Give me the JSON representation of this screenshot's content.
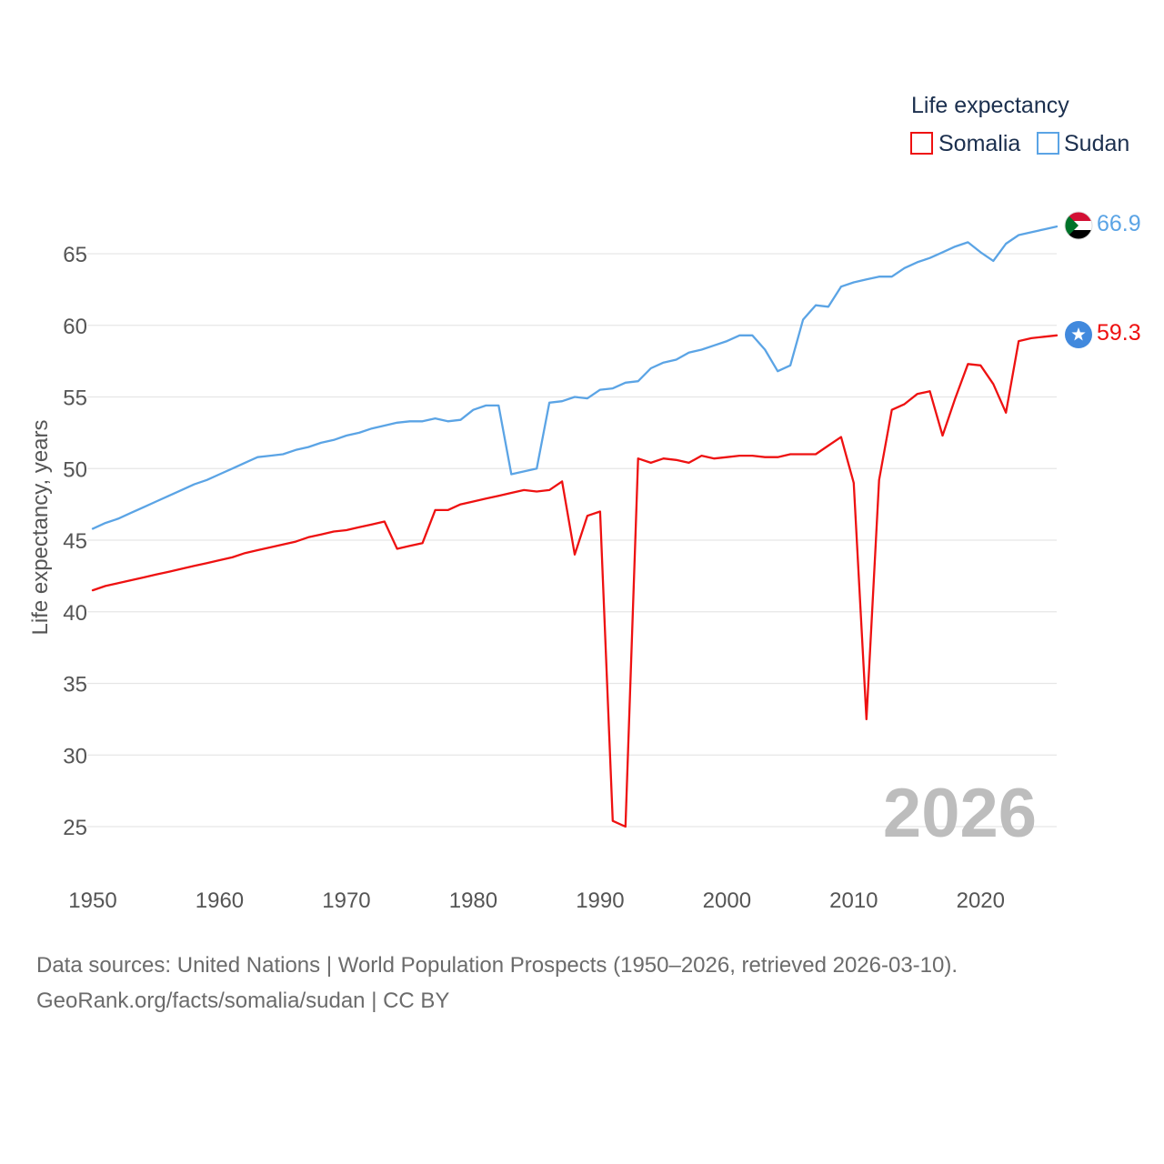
{
  "chart_data": {
    "type": "line",
    "title": "",
    "xlabel": "",
    "ylabel": "Life expectancy, years",
    "legend_title": "Life expectancy",
    "legend_position": "top-right",
    "xlim": [
      1950,
      2026
    ],
    "ylim": [
      22,
      69
    ],
    "x_ticks": [
      1950,
      1960,
      1970,
      1980,
      1990,
      2000,
      2010,
      2020
    ],
    "y_ticks": [
      25,
      30,
      35,
      40,
      45,
      50,
      55,
      60,
      65
    ],
    "grid": true,
    "year_label": "2026",
    "x": [
      1950,
      1951,
      1952,
      1953,
      1954,
      1955,
      1956,
      1957,
      1958,
      1959,
      1960,
      1961,
      1962,
      1963,
      1964,
      1965,
      1966,
      1967,
      1968,
      1969,
      1970,
      1971,
      1972,
      1973,
      1974,
      1975,
      1976,
      1977,
      1978,
      1979,
      1980,
      1981,
      1982,
      1983,
      1984,
      1985,
      1986,
      1987,
      1988,
      1989,
      1990,
      1991,
      1992,
      1993,
      1994,
      1995,
      1996,
      1997,
      1998,
      1999,
      2000,
      2001,
      2002,
      2003,
      2004,
      2005,
      2006,
      2007,
      2008,
      2009,
      2010,
      2011,
      2012,
      2013,
      2014,
      2015,
      2016,
      2017,
      2018,
      2019,
      2020,
      2021,
      2022,
      2023,
      2024,
      2025,
      2026
    ],
    "series": [
      {
        "name": "Somalia",
        "color": "#ee1111",
        "end_value_label": "59.3",
        "marker_icon": "somalia-flag-icon",
        "values": [
          41.5,
          41.8,
          42.0,
          42.2,
          42.4,
          42.6,
          42.8,
          43.0,
          43.2,
          43.4,
          43.6,
          43.8,
          44.1,
          44.3,
          44.5,
          44.7,
          44.9,
          45.2,
          45.4,
          45.6,
          45.7,
          45.9,
          46.1,
          46.3,
          44.4,
          44.6,
          44.8,
          47.1,
          47.1,
          47.5,
          47.7,
          47.9,
          48.1,
          48.3,
          48.5,
          48.4,
          48.5,
          49.1,
          44.0,
          46.7,
          47.0,
          25.4,
          25.0,
          50.7,
          50.4,
          50.7,
          50.6,
          50.4,
          50.9,
          50.7,
          50.8,
          50.9,
          50.9,
          50.8,
          50.8,
          51.0,
          51.0,
          51.0,
          51.6,
          52.2,
          49.0,
          32.5,
          49.2,
          54.1,
          54.5,
          55.2,
          55.4,
          52.3,
          54.9,
          57.3,
          57.2,
          55.9,
          53.9,
          58.9,
          59.1,
          59.2,
          59.3
        ]
      },
      {
        "name": "Sudan",
        "color": "#5ba4e5",
        "end_value_label": "66.9",
        "marker_icon": "sudan-flag-icon",
        "values": [
          45.8,
          46.2,
          46.5,
          46.9,
          47.3,
          47.7,
          48.1,
          48.5,
          48.9,
          49.2,
          49.6,
          50.0,
          50.4,
          50.8,
          50.9,
          51.0,
          51.3,
          51.5,
          51.8,
          52.0,
          52.3,
          52.5,
          52.8,
          53.0,
          53.2,
          53.3,
          53.3,
          53.5,
          53.3,
          53.4,
          54.1,
          54.4,
          54.4,
          49.6,
          49.8,
          50.0,
          54.6,
          54.7,
          55.0,
          54.9,
          55.5,
          55.6,
          56.0,
          56.1,
          57.0,
          57.4,
          57.6,
          58.1,
          58.3,
          58.6,
          58.9,
          59.3,
          59.3,
          58.3,
          56.8,
          57.2,
          60.4,
          61.4,
          61.3,
          62.7,
          63.0,
          63.2,
          63.4,
          63.4,
          64.0,
          64.4,
          64.7,
          65.1,
          65.5,
          65.8,
          65.1,
          64.5,
          65.7,
          66.3,
          66.5,
          66.7,
          66.9
        ]
      }
    ]
  },
  "footer": {
    "source_line": "Data sources: United Nations | World Population Prospects (1950–2026, retrieved 2026-03-10).",
    "credit_line": "GeoRank.org/facts/somalia/sudan | CC BY"
  }
}
